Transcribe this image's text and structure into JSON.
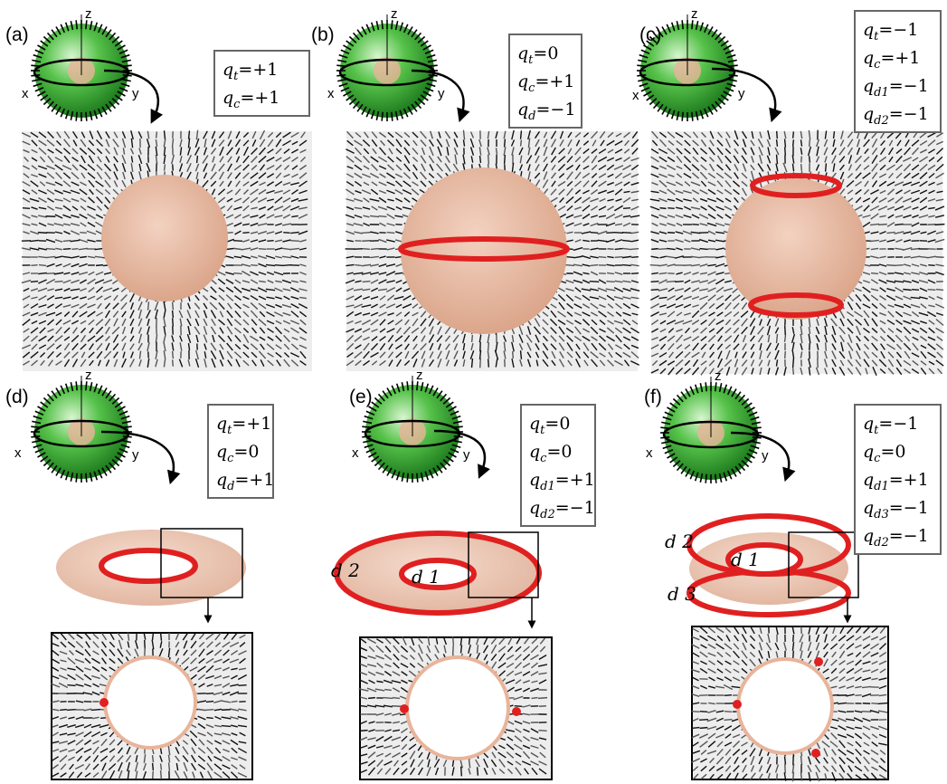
{
  "panels": [
    {
      "label": "(a)",
      "charges": [
        {
          "sym": "q",
          "sub": "t",
          "val": "=+1"
        },
        {
          "sym": "q",
          "sub": "c",
          "val": "=+1"
        }
      ]
    },
    {
      "label": "(b)",
      "charges": [
        {
          "sym": "q",
          "sub": "t",
          "val": "=0"
        },
        {
          "sym": "q",
          "sub": "c",
          "val": "=+1"
        },
        {
          "sym": "q",
          "sub": "d",
          "val": "=−1"
        }
      ]
    },
    {
      "label": "(c)",
      "charges": [
        {
          "sym": "q",
          "sub": "t",
          "val": "=−1"
        },
        {
          "sym": "q",
          "sub": "c",
          "val": "=+1"
        },
        {
          "sym": "q",
          "sub": "d1",
          "val": "=−1"
        },
        {
          "sym": "q",
          "sub": "d2",
          "val": "=−1"
        }
      ]
    },
    {
      "label": "(d)",
      "charges": [
        {
          "sym": "q",
          "sub": "t",
          "val": "=+1"
        },
        {
          "sym": "q",
          "sub": "c",
          "val": "=0"
        },
        {
          "sym": "q",
          "sub": "d",
          "val": "=+1"
        }
      ]
    },
    {
      "label": "(e)",
      "charges": [
        {
          "sym": "q",
          "sub": "t",
          "val": "=0"
        },
        {
          "sym": "q",
          "sub": "c",
          "val": "=0"
        },
        {
          "sym": "q",
          "sub": "d1",
          "val": "=+1"
        },
        {
          "sym": "q",
          "sub": "d2",
          "val": "=−1"
        }
      ]
    },
    {
      "label": "(f)",
      "charges": [
        {
          "sym": "q",
          "sub": "t",
          "val": "=−1"
        },
        {
          "sym": "q",
          "sub": "c",
          "val": "=0"
        },
        {
          "sym": "q",
          "sub": "d1",
          "val": "=+1"
        },
        {
          "sym": "q",
          "sub": "d3",
          "val": "=−1"
        },
        {
          "sym": "q",
          "sub": "d2",
          "val": "=−1"
        }
      ]
    }
  ],
  "axes": {
    "x": "x",
    "y": "y",
    "z": "z"
  },
  "defect_labels": {
    "e": [
      "d 2",
      "d 1"
    ],
    "f": [
      "d 2",
      "d 1",
      "d 3"
    ]
  },
  "colors": {
    "green": "#2f9e2f",
    "particle": "#e8b49a",
    "defect": "#e02020",
    "box_border": "#666666"
  }
}
